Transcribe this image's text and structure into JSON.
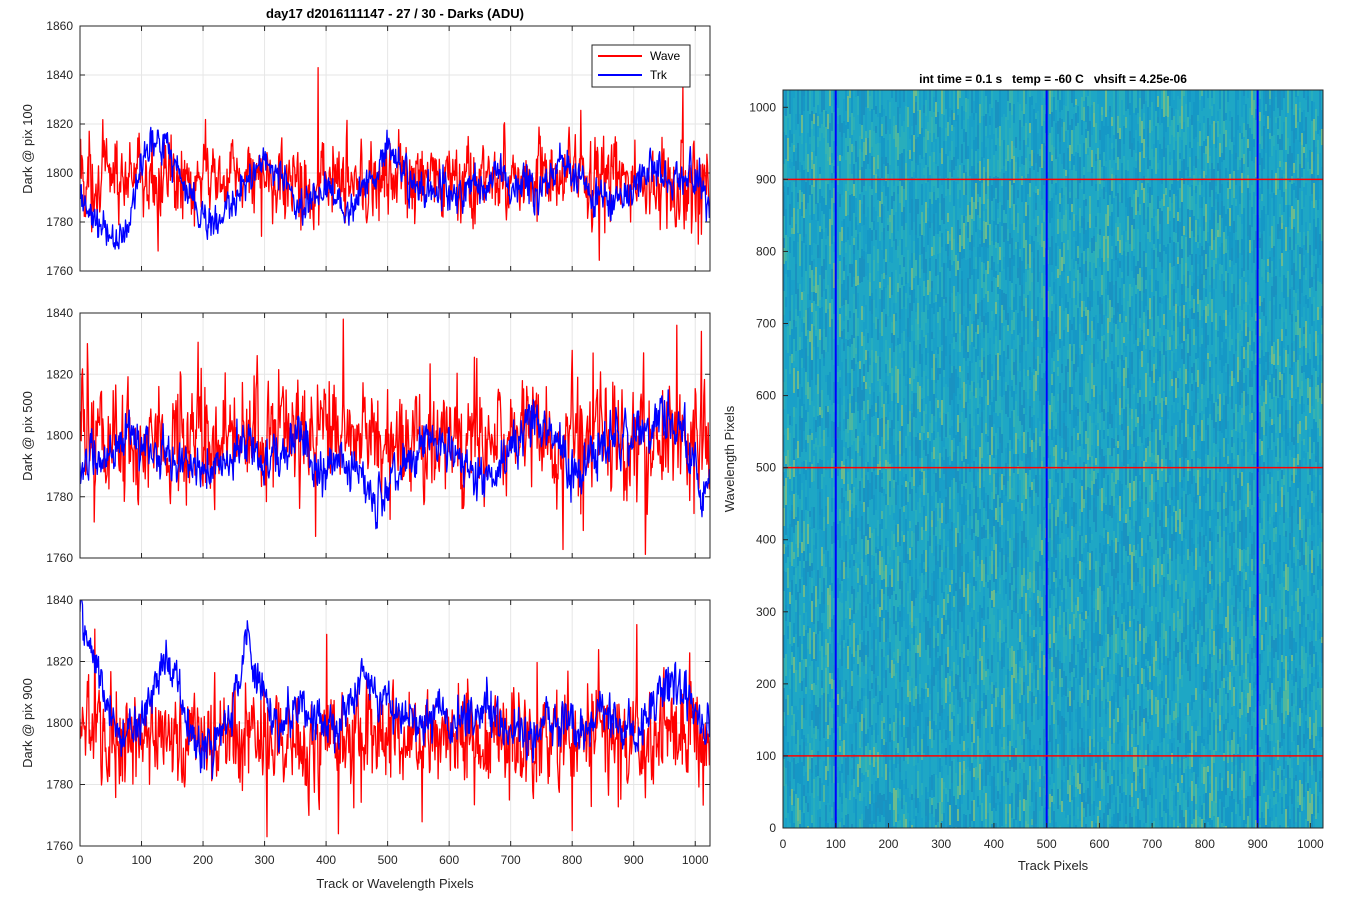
{
  "figure": {
    "suptitle": "day17 d2016111147 - 27 / 30 - Darks (ADU)"
  },
  "chart_data": [
    {
      "type": "line",
      "id": "trace-100",
      "title": "",
      "xlabel": "",
      "ylabel": "Dark @ pix 100",
      "xlim": [
        0,
        1024
      ],
      "ylim": [
        1760,
        1860
      ],
      "xticks": [
        0,
        100,
        200,
        300,
        400,
        500,
        600,
        700,
        800,
        900,
        1000
      ],
      "yticks": [
        1760,
        1780,
        1800,
        1820,
        1840,
        1860
      ],
      "show_xtick_labels": false,
      "grid": true,
      "legend": {
        "position": "top-right",
        "entries": [
          "Wave",
          "Trk"
        ]
      },
      "series": [
        {
          "name": "Wave",
          "color": "#ff0000",
          "approx_mean": 1797,
          "approx_noise": 7.5,
          "spikes": [
            [
              387,
              1843
            ],
            [
              980,
              1836
            ],
            [
              1005,
              1771
            ]
          ]
        },
        {
          "name": "Trk",
          "color": "#0000ff",
          "approx_mean": 1795,
          "approx_noise": 4,
          "trend": [
            [
              0,
              1788
            ],
            [
              20,
              1782
            ],
            [
              40,
              1775
            ],
            [
              60,
              1772
            ],
            [
              80,
              1778
            ],
            [
              100,
              1805
            ],
            [
              120,
              1815
            ],
            [
              140,
              1812
            ],
            [
              160,
              1800
            ],
            [
              180,
              1790
            ],
            [
              200,
              1782
            ],
            [
              220,
              1778
            ],
            [
              240,
              1785
            ],
            [
              260,
              1790
            ],
            [
              280,
              1800
            ],
            [
              300,
              1806
            ],
            [
              320,
              1800
            ],
            [
              340,
              1795
            ],
            [
              360,
              1785
            ],
            [
              380,
              1790
            ],
            [
              400,
              1795
            ],
            [
              420,
              1790
            ],
            [
              440,
              1785
            ],
            [
              460,
              1795
            ],
            [
              480,
              1802
            ],
            [
              500,
              1810
            ],
            [
              520,
              1803
            ],
            [
              540,
              1795
            ],
            [
              560,
              1790
            ],
            [
              580,
              1795
            ],
            [
              600,
              1793
            ],
            [
              620,
              1790
            ],
            [
              640,
              1797
            ],
            [
              660,
              1795
            ],
            [
              680,
              1799
            ],
            [
              700,
              1795
            ],
            [
              720,
              1797
            ],
            [
              740,
              1793
            ],
            [
              760,
              1798
            ],
            [
              780,
              1805
            ],
            [
              800,
              1800
            ],
            [
              820,
              1795
            ],
            [
              840,
              1790
            ],
            [
              860,
              1787
            ],
            [
              880,
              1790
            ],
            [
              900,
              1795
            ],
            [
              920,
              1800
            ],
            [
              940,
              1802
            ],
            [
              960,
              1800
            ],
            [
              980,
              1797
            ],
            [
              1000,
              1800
            ],
            [
              1010,
              1795
            ],
            [
              1024,
              1780
            ]
          ]
        }
      ]
    },
    {
      "type": "line",
      "id": "trace-500",
      "title": "",
      "xlabel": "",
      "ylabel": "Dark @ pix 500",
      "xlim": [
        0,
        1024
      ],
      "ylim": [
        1760,
        1840
      ],
      "xticks": [
        0,
        100,
        200,
        300,
        400,
        500,
        600,
        700,
        800,
        900,
        1000
      ],
      "yticks": [
        1760,
        1780,
        1800,
        1820,
        1840
      ],
      "show_xtick_labels": false,
      "grid": true,
      "series": [
        {
          "name": "Wave",
          "color": "#ff0000",
          "approx_mean": 1799,
          "approx_noise": 8,
          "spikes": [
            [
              12,
              1830
            ],
            [
              970,
              1836
            ],
            [
              1010,
              1834
            ]
          ]
        },
        {
          "name": "Trk",
          "color": "#0000ff",
          "approx_mean": 1795,
          "approx_noise": 4,
          "trend": [
            [
              0,
              1792
            ],
            [
              40,
              1790
            ],
            [
              60,
              1798
            ],
            [
              80,
              1800
            ],
            [
              100,
              1797
            ],
            [
              140,
              1793
            ],
            [
              180,
              1790
            ],
            [
              200,
              1788
            ],
            [
              240,
              1793
            ],
            [
              280,
              1798
            ],
            [
              300,
              1790
            ],
            [
              340,
              1797
            ],
            [
              360,
              1800
            ],
            [
              380,
              1790
            ],
            [
              400,
              1788
            ],
            [
              420,
              1795
            ],
            [
              440,
              1792
            ],
            [
              460,
              1785
            ],
            [
              480,
              1778
            ],
            [
              500,
              1785
            ],
            [
              520,
              1790
            ],
            [
              540,
              1793
            ],
            [
              560,
              1797
            ],
            [
              580,
              1795
            ],
            [
              600,
              1795
            ],
            [
              620,
              1790
            ],
            [
              640,
              1787
            ],
            [
              660,
              1785
            ],
            [
              680,
              1788
            ],
            [
              700,
              1795
            ],
            [
              720,
              1800
            ],
            [
              740,
              1805
            ],
            [
              760,
              1800
            ],
            [
              780,
              1795
            ],
            [
              800,
              1788
            ],
            [
              820,
              1790
            ],
            [
              840,
              1793
            ],
            [
              860,
              1800
            ],
            [
              880,
              1800
            ],
            [
              900,
              1800
            ],
            [
              920,
              1802
            ],
            [
              940,
              1808
            ],
            [
              960,
              1805
            ],
            [
              980,
              1800
            ],
            [
              1000,
              1790
            ],
            [
              1010,
              1775
            ],
            [
              1024,
              1785
            ]
          ]
        }
      ]
    },
    {
      "type": "line",
      "id": "trace-900",
      "title": "",
      "xlabel": "Track or Wavelength Pixels",
      "ylabel": "Dark @ pix 900",
      "xlim": [
        0,
        1024
      ],
      "ylim": [
        1760,
        1840
      ],
      "xticks": [
        0,
        100,
        200,
        300,
        400,
        500,
        600,
        700,
        800,
        900,
        1000
      ],
      "yticks": [
        1760,
        1780,
        1800,
        1820,
        1840
      ],
      "show_xtick_labels": true,
      "grid": true,
      "series": [
        {
          "name": "Wave",
          "color": "#ff0000",
          "approx_mean": 1795,
          "approx_noise": 7.5,
          "spikes": [
            [
              420,
              1764
            ],
            [
              800,
              1765
            ],
            [
              905,
              1832
            ]
          ]
        },
        {
          "name": "Trk",
          "color": "#0000ff",
          "approx_mean": 1800,
          "approx_noise": 4,
          "trend": [
            [
              0,
              1838
            ],
            [
              10,
              1830
            ],
            [
              20,
              1820
            ],
            [
              40,
              1810
            ],
            [
              60,
              1797
            ],
            [
              80,
              1797
            ],
            [
              100,
              1800
            ],
            [
              120,
              1815
            ],
            [
              140,
              1823
            ],
            [
              160,
              1810
            ],
            [
              180,
              1797
            ],
            [
              200,
              1790
            ],
            [
              220,
              1792
            ],
            [
              240,
              1800
            ],
            [
              260,
              1815
            ],
            [
              270,
              1830
            ],
            [
              280,
              1817
            ],
            [
              300,
              1807
            ],
            [
              320,
              1800
            ],
            [
              340,
              1800
            ],
            [
              360,
              1805
            ],
            [
              380,
              1803
            ],
            [
              400,
              1800
            ],
            [
              420,
              1800
            ],
            [
              440,
              1808
            ],
            [
              460,
              1818
            ],
            [
              480,
              1810
            ],
            [
              500,
              1803
            ],
            [
              520,
              1802
            ],
            [
              540,
              1800
            ],
            [
              560,
              1797
            ],
            [
              580,
              1805
            ],
            [
              600,
              1800
            ],
            [
              620,
              1802
            ],
            [
              640,
              1803
            ],
            [
              660,
              1805
            ],
            [
              680,
              1800
            ],
            [
              700,
              1800
            ],
            [
              720,
              1798
            ],
            [
              740,
              1795
            ],
            [
              760,
              1803
            ],
            [
              780,
              1800
            ],
            [
              800,
              1800
            ],
            [
              820,
              1797
            ],
            [
              840,
              1803
            ],
            [
              860,
              1805
            ],
            [
              880,
              1795
            ],
            [
              900,
              1797
            ],
            [
              920,
              1800
            ],
            [
              940,
              1808
            ],
            [
              960,
              1815
            ],
            [
              980,
              1810
            ],
            [
              1000,
              1803
            ],
            [
              1024,
              1795
            ]
          ]
        }
      ]
    },
    {
      "type": "heatmap",
      "id": "dark-frame",
      "title": "int time = 0.1 s   temp = -60 C   vhsift = 4.25e-06",
      "xlabel": "Track Pixels",
      "ylabel": "Wavelength Pixels",
      "xlim": [
        0,
        1024
      ],
      "ylim": [
        0,
        1024
      ],
      "xticks": [
        0,
        100,
        200,
        300,
        400,
        500,
        600,
        700,
        800,
        900,
        1000
      ],
      "yticks": [
        0,
        100,
        200,
        300,
        400,
        500,
        600,
        700,
        800,
        900,
        1000
      ],
      "colormap": "parula",
      "base_color": "#1aa0c8",
      "vertical_markers": {
        "values": [
          100,
          500,
          900
        ],
        "color": "#0000ff"
      },
      "horizontal_markers": {
        "values": [
          100,
          500,
          900
        ],
        "color": "#ff0000"
      }
    }
  ]
}
